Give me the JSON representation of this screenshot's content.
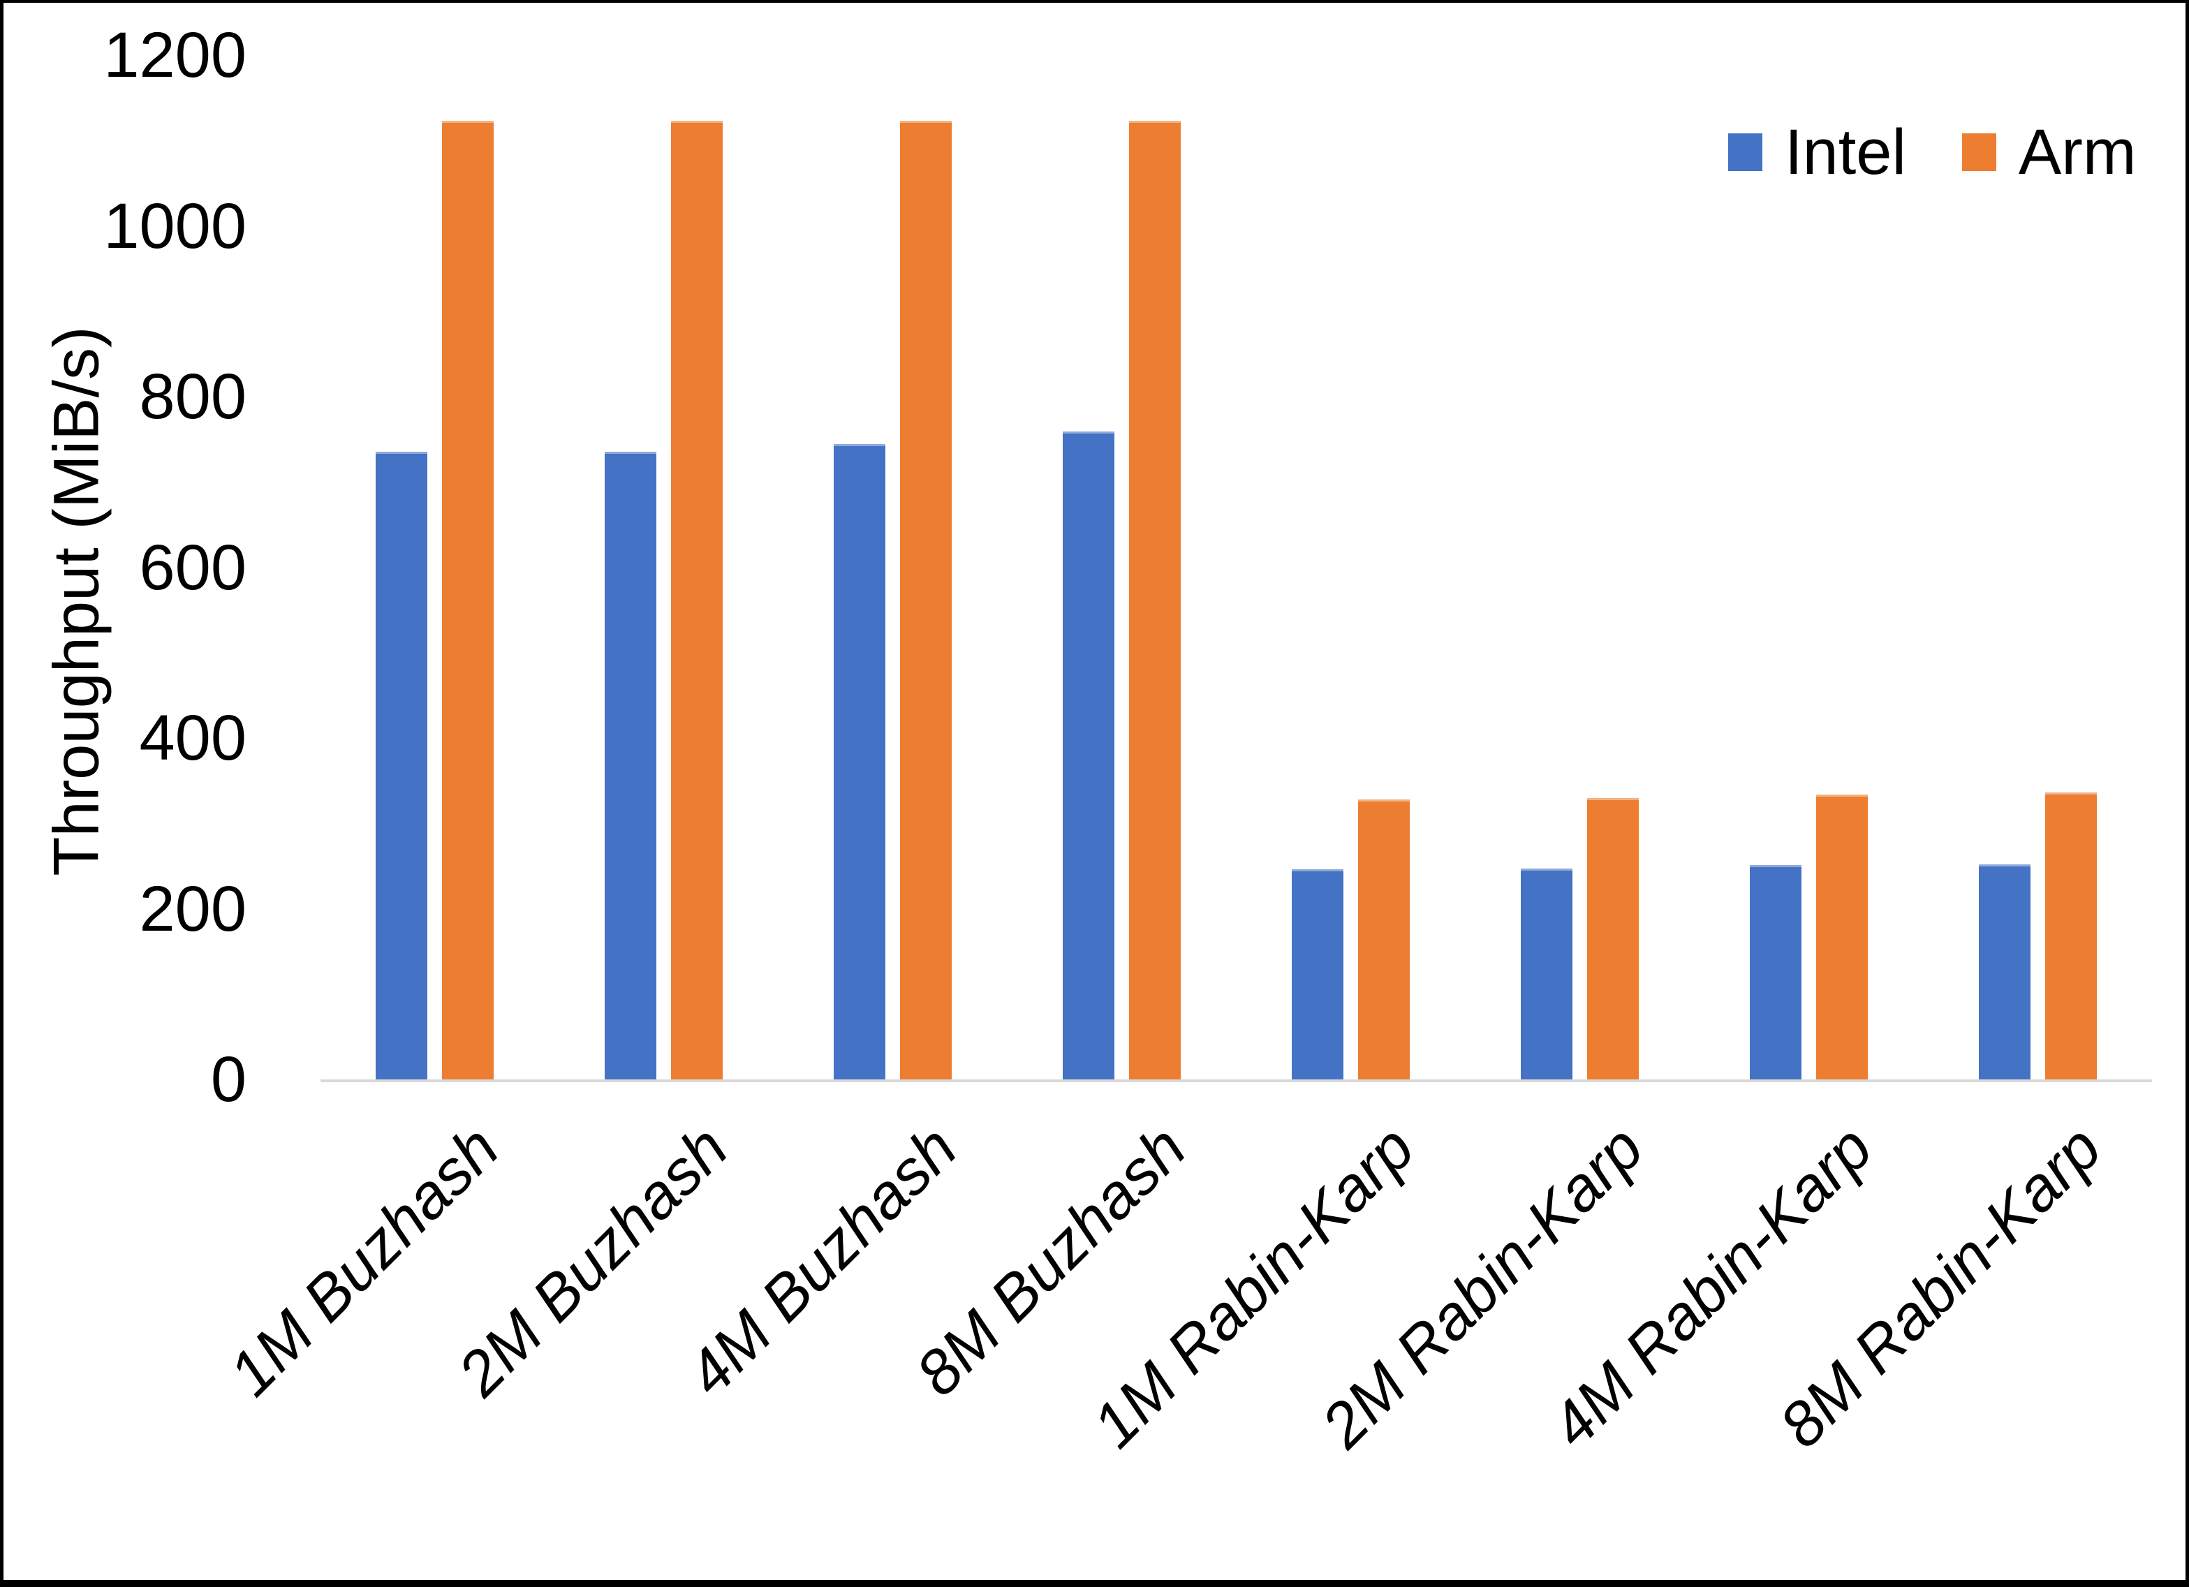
{
  "chart_data": {
    "type": "bar",
    "title": "",
    "xlabel": "",
    "ylabel": "Throughput (MiB/s)",
    "categories": [
      "1M Buzhash",
      "2M Buzhash",
      "4M Buzhash",
      "8M Buzhash",
      "1M Rabin-Karp",
      "2M Rabin-Karp",
      "4M Rabin-Karp",
      "8M Rabin-Karp"
    ],
    "series": [
      {
        "name": "Intel",
        "color": "#4472C4",
        "values": [
          735,
          735,
          744,
          759,
          246,
          247,
          251,
          252
        ]
      },
      {
        "name": "Arm",
        "color": "#ED7D31",
        "values": [
          1123,
          1123,
          1123,
          1123,
          328,
          330,
          334,
          336
        ]
      }
    ],
    "ylim": [
      0,
      1200
    ],
    "yticks": [
      0,
      200,
      400,
      600,
      800,
      1000,
      1200
    ],
    "grid": false,
    "legend_position": "top-right"
  },
  "colors": {
    "background": "#FFFFFF",
    "frame_border": "#000000",
    "axis_line": "#D9D9D9",
    "text": "#000000"
  }
}
